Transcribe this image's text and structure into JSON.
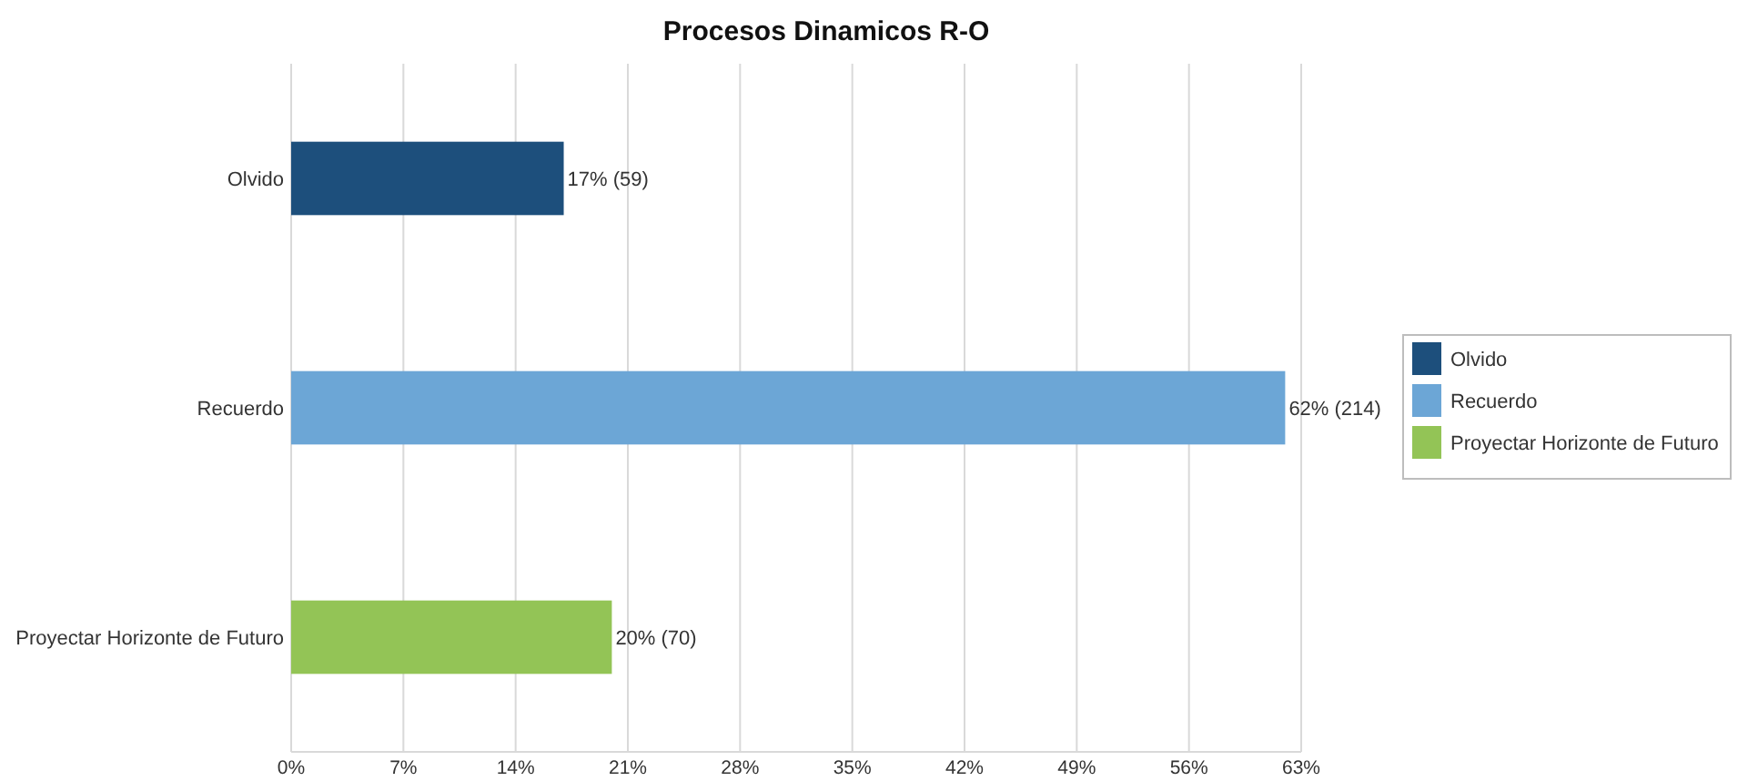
{
  "chart_data": {
    "type": "bar",
    "title": "Procesos Dinamicos R-O",
    "orientation": "horizontal",
    "categories": [
      "Olvido",
      "Recuerdo",
      "Proyectar Horizonte de Futuro"
    ],
    "series": [
      {
        "name": "Olvido",
        "color": "#1d4f7c",
        "values": [
          17,
          null,
          null
        ],
        "value_labels": [
          "17% (59)",
          null,
          null
        ]
      },
      {
        "name": "Recuerdo",
        "color": "#6ca6d6",
        "values": [
          null,
          62,
          null
        ],
        "value_labels": [
          null,
          "62% (214)",
          null
        ]
      },
      {
        "name": "Proyectar Horizonte de Futuro",
        "color": "#93c456",
        "values": [
          null,
          null,
          20
        ],
        "value_labels": [
          null,
          null,
          "20% (70)"
        ]
      }
    ],
    "xlim": [
      0,
      63
    ],
    "xticks": [
      {
        "value": 0,
        "label": "0%"
      },
      {
        "value": 7,
        "label": "7%"
      },
      {
        "value": 14,
        "label": "14%"
      },
      {
        "value": 21,
        "label": "21%"
      },
      {
        "value": 28,
        "label": "28%"
      },
      {
        "value": 35,
        "label": "35%"
      },
      {
        "value": 42,
        "label": "42%"
      },
      {
        "value": 49,
        "label": "49%"
      },
      {
        "value": 56,
        "label": "56%"
      },
      {
        "value": 63,
        "label": "63%"
      }
    ],
    "grid": "x",
    "legend": "right"
  }
}
